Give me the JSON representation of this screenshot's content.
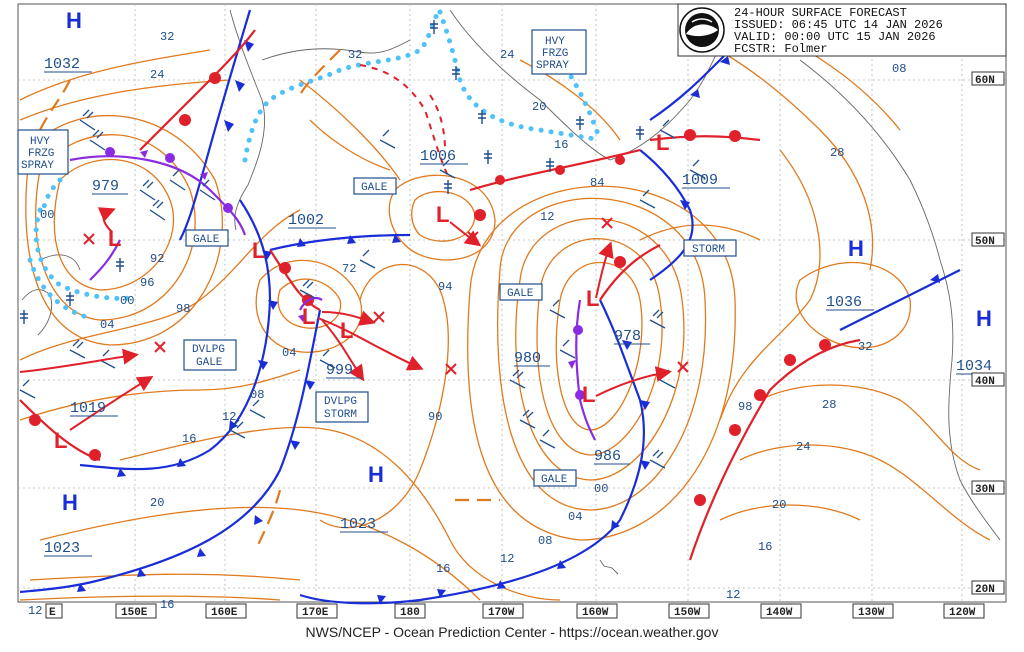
{
  "header": {
    "line1": "24-HOUR SURFACE FORECAST",
    "line2": "ISSUED: 06:45 UTC 14 JAN 2026",
    "line3": "VALID:  00:00 UTC 15 JAN 2026",
    "line4": "FCSTR:  Folmer"
  },
  "footer": {
    "credit": "NWS/NCEP - Ocean Prediction Center - https://ocean.weather.gov"
  },
  "longitude_labels": [
    "E",
    "150E",
    "160E",
    "170E",
    "180",
    "170W",
    "160W",
    "150W",
    "140W",
    "130W",
    "120W"
  ],
  "latitude_labels": [
    "60N",
    "50N",
    "40N",
    "30N",
    "20N"
  ],
  "highs": [
    {
      "label": "H",
      "pressure": "1032"
    },
    {
      "label": "H",
      "pressure": "1023"
    },
    {
      "label": "H",
      "pressure": "1023"
    },
    {
      "label": "H",
      "pressure": "1036"
    },
    {
      "label": "H",
      "pressure": "1034"
    }
  ],
  "lows": [
    {
      "label": "L",
      "pressure": "979"
    },
    {
      "label": "L",
      "pressure": "1006"
    },
    {
      "label": "L",
      "pressure": "1002"
    },
    {
      "label": "L",
      "pressure": "999"
    },
    {
      "label": "L",
      "pressure": "980"
    },
    {
      "label": "L",
      "pressure": "978"
    },
    {
      "label": "L",
      "pressure": "986"
    },
    {
      "label": "L",
      "pressure": "1009"
    },
    {
      "label": "L",
      "pressure": "1019"
    }
  ],
  "warning_boxes": [
    {
      "lines": [
        "HVY",
        "FRZG",
        "SPRAY"
      ]
    },
    {
      "lines": [
        "HVY",
        "FRZG",
        "SPRAY"
      ]
    },
    {
      "lines": [
        "GALE"
      ]
    },
    {
      "lines": [
        "GALE"
      ]
    },
    {
      "lines": [
        "GALE"
      ]
    },
    {
      "lines": [
        "GALE"
      ]
    },
    {
      "lines": [
        "STORM"
      ]
    },
    {
      "lines": [
        "DVLPG",
        "GALE"
      ]
    },
    {
      "lines": [
        "DVLPG",
        "STORM"
      ]
    }
  ],
  "isobar_labels": [
    "32",
    "24",
    "32",
    "24",
    "20",
    "16",
    "08",
    "00",
    "92",
    "96",
    "00",
    "04",
    "98",
    "72",
    "94",
    "84",
    "12",
    "28",
    "32",
    "28",
    "24",
    "20",
    "16",
    "12",
    "98",
    "90",
    "00",
    "04",
    "08",
    "12",
    "16",
    "16",
    "12",
    "20",
    "16",
    "12",
    "04",
    "08",
    "00"
  ],
  "colors": {
    "isobar": "#e07a1f",
    "cold_front": "#1a2ed8",
    "warm_front": "#e0202a",
    "occluded": "#8a2be2",
    "ice_edge": "#4fc3f7",
    "label_blue": "#1f4e8c",
    "low_red": "#e0202a",
    "high_blue": "#1a2ed8",
    "grid": "#b0b0b0"
  },
  "icons": [
    "noaa-logo",
    "wind-barb",
    "freezing-spray-symbol",
    "storm-track-arrow",
    "future-position-x"
  ]
}
